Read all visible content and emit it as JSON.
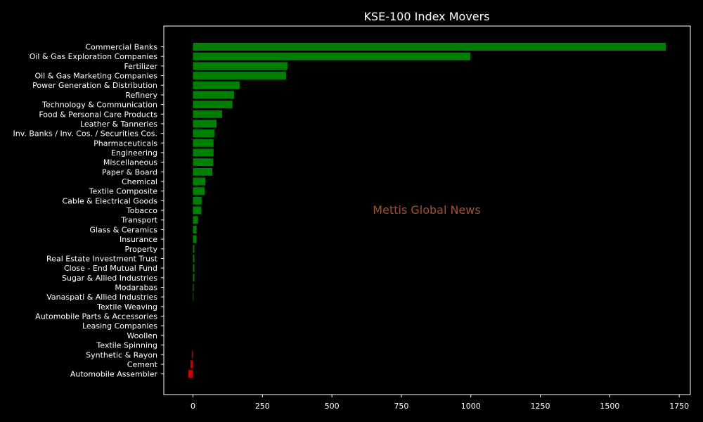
{
  "chart_data": {
    "type": "bar",
    "orientation": "horizontal",
    "title": "KSE-100 Index Movers",
    "xlabel": "",
    "ylabel": "",
    "xlim": [
      -105,
      1790
    ],
    "xticks": [
      0,
      250,
      500,
      750,
      1000,
      1250,
      1500,
      1750
    ],
    "grid": false,
    "legend": "none",
    "watermark": "Mettis Global News",
    "categories": [
      "Commercial Banks",
      "Oil & Gas Exploration Companies",
      "Fertilizer",
      "Oil & Gas Marketing Companies",
      "Power Generation & Distribution",
      "Refinery",
      "Technology & Communication",
      "Food & Personal Care Products",
      "Leather & Tanneries",
      "Inv. Banks / Inv. Cos. / Securities Cos.",
      "Pharmaceuticals",
      "Engineering",
      "Miscellaneous",
      "Paper & Board",
      "Chemical",
      "Textile Composite",
      "Cable & Electrical Goods",
      "Tobacco",
      "Transport",
      "Glass & Ceramics",
      "Insurance",
      "Property",
      "Real Estate Investment Trust",
      "Close - End Mutual Fund",
      "Sugar & Allied Industries",
      "Modarabas",
      "Vanaspati & Allied Industries",
      "Textile Weaving",
      "Automobile Parts & Accessories",
      "Leasing Companies",
      "Woollen",
      "Textile Spinning",
      "Synthetic & Rayon",
      "Cement",
      "Automobile Assembler"
    ],
    "values": [
      1702,
      998,
      340,
      335,
      168,
      148,
      142,
      105,
      85,
      77,
      74,
      74,
      73,
      70,
      45,
      42,
      31,
      30,
      18,
      13,
      13,
      5,
      5,
      5,
      5,
      3,
      2,
      0,
      0,
      0,
      0,
      0,
      -4,
      -9,
      -17
    ]
  },
  "colors": {
    "background": "#000000",
    "positive": "#008000",
    "negative": "#cc0000",
    "text": "#ffffff",
    "axis": "#ffffff",
    "watermark": "#a0522d"
  }
}
